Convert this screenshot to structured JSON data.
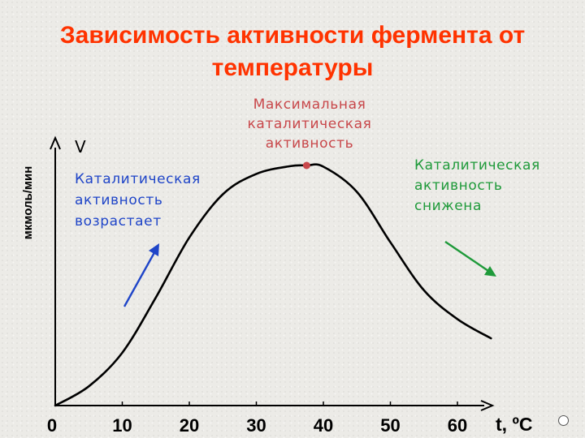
{
  "title": {
    "line1": "Зависимость активности фермента от",
    "line2": "температуры",
    "color": "#ff3300"
  },
  "chart_data": {
    "type": "line",
    "title": "Зависимость активности фермента от температуры",
    "xlabel": "t, ºC",
    "ylabel_left": "мкмоль/мин",
    "ylabel_top": "V",
    "x_ticks": [
      0,
      10,
      20,
      30,
      40,
      50,
      60
    ],
    "xlim": [
      0,
      65
    ],
    "ylim": [
      0,
      100
    ],
    "grid": false,
    "series": [
      {
        "x": [
          0,
          5,
          10,
          15,
          20,
          25,
          30,
          35,
          37.5,
          40,
          45,
          50,
          55,
          60,
          65
        ],
        "y": [
          0,
          8,
          22,
          45,
          70,
          88,
          96.5,
          99.7,
          100,
          99.5,
          89,
          68,
          48,
          36,
          28
        ],
        "color": "#000000"
      }
    ],
    "annotations": [
      {
        "id": "max",
        "lines": [
          "Максимальная",
          "каталитическая",
          "активность"
        ],
        "color": "#c8474a",
        "point": {
          "x": 37.5,
          "y": 100
        }
      },
      {
        "id": "rising",
        "lines": [
          "Каталитическая",
          "активность",
          "возрастает"
        ],
        "color": "#1f45c8"
      },
      {
        "id": "falling",
        "lines": [
          "Каталитическая",
          "активность",
          "снижена"
        ],
        "color": "#1f9a3a"
      }
    ],
    "colors": {
      "axis": "#000000",
      "tick_labels": "#000000"
    }
  },
  "nav": {
    "icon": "circle-icon"
  }
}
